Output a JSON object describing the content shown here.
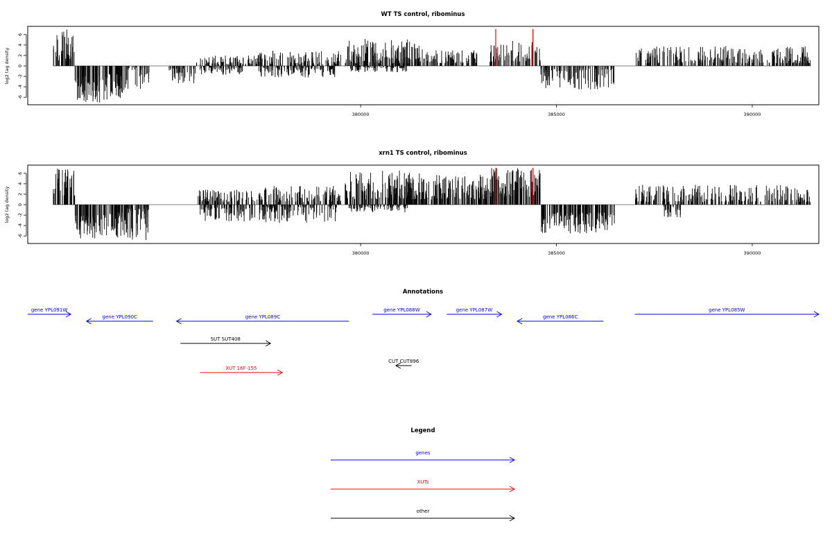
{
  "chart_data": [
    {
      "type": "bar",
      "title": "WT TS control, ribominus",
      "xlabel": "",
      "ylabel": "log2 tag density",
      "xlim": [
        371500,
        391700
      ],
      "ylim": [
        -7.5,
        7.5
      ],
      "yticks": [
        -6,
        -4,
        -2,
        0,
        2,
        4,
        6
      ],
      "yticklabels": [
        "-6",
        "-4",
        "-2",
        "0",
        "2",
        "4",
        "6"
      ],
      "xticks": [
        380000,
        385000,
        390000
      ],
      "xticklabels": [
        "380000",
        "385000",
        "390000"
      ],
      "grid": false,
      "marker_color": "#ff0000",
      "markers": [
        383450,
        384400
      ],
      "segments": [
        {
          "start": 372150,
          "end": 372700,
          "sign": 1,
          "min": 0.8,
          "max": 7.0
        },
        {
          "start": 372700,
          "end": 373500,
          "sign": -1,
          "min": 2.0,
          "max": 7.0
        },
        {
          "start": 373500,
          "end": 374000,
          "sign": -1,
          "min": 1.5,
          "max": 6.5
        },
        {
          "start": 374000,
          "end": 374600,
          "sign": -1,
          "min": 0.3,
          "max": 4.5
        },
        {
          "start": 375100,
          "end": 375800,
          "sign": -1,
          "min": 0.5,
          "max": 3.5
        },
        {
          "start": 375800,
          "end": 377300,
          "sign": 1,
          "min": 0.3,
          "max": 2.0
        },
        {
          "start": 375900,
          "end": 377000,
          "sign": -1,
          "min": 0.3,
          "max": 1.8
        },
        {
          "start": 377300,
          "end": 379500,
          "sign": 1,
          "min": 0.3,
          "max": 3.0
        },
        {
          "start": 377400,
          "end": 379400,
          "sign": -1,
          "min": 0.3,
          "max": 2.3
        },
        {
          "start": 379600,
          "end": 381500,
          "sign": 1,
          "min": 0.5,
          "max": 5.2
        },
        {
          "start": 379700,
          "end": 381200,
          "sign": -1,
          "min": 0.2,
          "max": 1.2
        },
        {
          "start": 381500,
          "end": 383000,
          "sign": 1,
          "min": 0.5,
          "max": 3.2
        },
        {
          "start": 383300,
          "end": 384600,
          "sign": 1,
          "min": 0.6,
          "max": 4.8
        },
        {
          "start": 384600,
          "end": 386500,
          "sign": -1,
          "min": 0.5,
          "max": 4.5
        },
        {
          "start": 387000,
          "end": 391500,
          "sign": 1,
          "min": 0.5,
          "max": 3.8
        }
      ]
    },
    {
      "type": "bar",
      "title": "xrn1 TS control, ribominus",
      "xlabel": "",
      "ylabel": "log2 tag density",
      "xlim": [
        371500,
        391700
      ],
      "ylim": [
        -7.5,
        7.5
      ],
      "yticks": [
        -6,
        -4,
        -2,
        0,
        2,
        4,
        6
      ],
      "yticklabels": [
        "-6",
        "-4",
        "-2",
        "0",
        "2",
        "4",
        "6"
      ],
      "xticks": [
        380000,
        385000,
        390000
      ],
      "xticklabels": [
        "380000",
        "385000",
        "390000"
      ],
      "grid": false,
      "marker_color": "#ff0000",
      "markers": [
        383450,
        384400
      ],
      "segments": [
        {
          "start": 372150,
          "end": 372700,
          "sign": 1,
          "min": 1.5,
          "max": 7.0
        },
        {
          "start": 372700,
          "end": 373500,
          "sign": -1,
          "min": 2.0,
          "max": 6.5
        },
        {
          "start": 373500,
          "end": 374000,
          "sign": -1,
          "min": 1.5,
          "max": 6.5
        },
        {
          "start": 374000,
          "end": 374600,
          "sign": -1,
          "min": 0.5,
          "max": 6.8
        },
        {
          "start": 375800,
          "end": 377300,
          "sign": 1,
          "min": 0.5,
          "max": 3.0
        },
        {
          "start": 375900,
          "end": 377300,
          "sign": -1,
          "min": 0.5,
          "max": 3.2
        },
        {
          "start": 377300,
          "end": 379500,
          "sign": 1,
          "min": 0.5,
          "max": 3.6
        },
        {
          "start": 377400,
          "end": 379400,
          "sign": -1,
          "min": 0.3,
          "max": 3.5
        },
        {
          "start": 379600,
          "end": 381500,
          "sign": 1,
          "min": 1.0,
          "max": 6.5
        },
        {
          "start": 379700,
          "end": 381200,
          "sign": -1,
          "min": 0.2,
          "max": 1.5
        },
        {
          "start": 381500,
          "end": 383300,
          "sign": 1,
          "min": 1.0,
          "max": 5.8
        },
        {
          "start": 383300,
          "end": 384600,
          "sign": 1,
          "min": 1.5,
          "max": 7.0
        },
        {
          "start": 384600,
          "end": 386500,
          "sign": -1,
          "min": 1.5,
          "max": 5.5
        },
        {
          "start": 387000,
          "end": 391500,
          "sign": 1,
          "min": 0.5,
          "max": 3.8
        },
        {
          "start": 387700,
          "end": 388200,
          "sign": -1,
          "min": 0.3,
          "max": 2.5
        }
      ]
    }
  ],
  "annotations": {
    "title": "Annotations",
    "features": [
      {
        "label": "gene YPL091W",
        "category": "genes",
        "color": "#0000ff",
        "direction": "right",
        "start": 371500,
        "end": 372600,
        "row": 0
      },
      {
        "label": "gene YPL090C",
        "category": "genes",
        "color": "#0000ff",
        "direction": "left",
        "start": 373000,
        "end": 374700,
        "row": 1
      },
      {
        "label": "gene YPL089C",
        "category": "genes",
        "color": "#0000ff",
        "direction": "left",
        "start": 375300,
        "end": 379700,
        "row": 1
      },
      {
        "label": "gene YPL088W",
        "category": "genes",
        "color": "#0000ff",
        "direction": "right",
        "start": 380300,
        "end": 381800,
        "row": 0
      },
      {
        "label": "gene YPL087W",
        "category": "genes",
        "color": "#0000ff",
        "direction": "right",
        "start": 382200,
        "end": 383600,
        "row": 0
      },
      {
        "label": "gene YPL086C",
        "category": "genes",
        "color": "#0000ff",
        "direction": "left",
        "start": 384000,
        "end": 386200,
        "row": 1
      },
      {
        "label": "gene YPL085W",
        "category": "genes",
        "color": "#0000ff",
        "direction": "right",
        "start": 387000,
        "end": 391700,
        "row": 0
      },
      {
        "label": "SUT SUT408",
        "category": "other",
        "color": "#000000",
        "direction": "right",
        "start": 375400,
        "end": 377700,
        "row": 2
      },
      {
        "label": "CUT CUT896",
        "category": "other",
        "color": "#000000",
        "direction": "left",
        "start": 380900,
        "end": 381300,
        "row": 3
      },
      {
        "label": "XUT 16F-155",
        "category": "XUTs",
        "color": "#ff0000",
        "direction": "right",
        "start": 375900,
        "end": 378000,
        "row": 4
      }
    ]
  },
  "legend": {
    "title": "Legend",
    "items": [
      {
        "label": "genes",
        "color": "#0000ff"
      },
      {
        "label": "XUTs",
        "color": "#ff0000"
      },
      {
        "label": "other",
        "color": "#000000"
      }
    ]
  }
}
